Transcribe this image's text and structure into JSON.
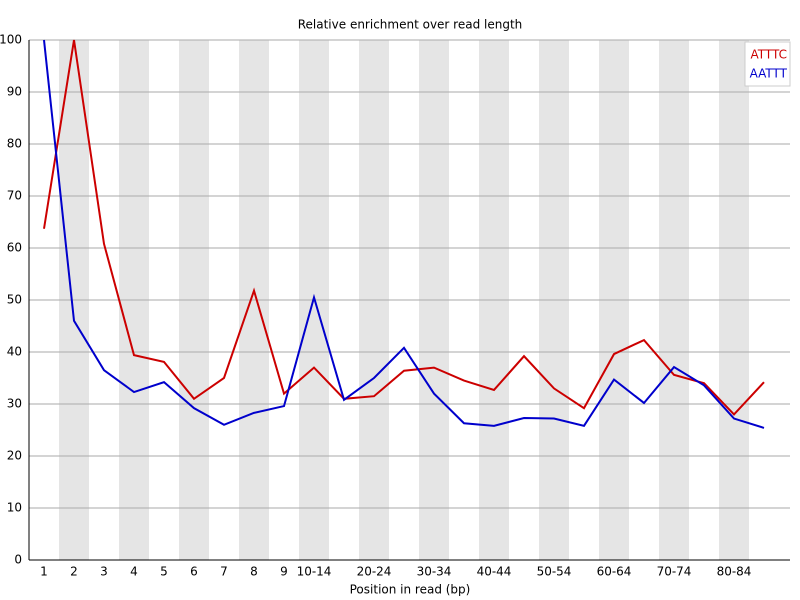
{
  "chart_data": {
    "type": "line",
    "title": "Relative enrichment over read length",
    "xlabel": "Position in read (bp)",
    "categories": [
      "1",
      "2",
      "3",
      "4",
      "5",
      "6",
      "7",
      "8",
      "9",
      "10-14",
      null,
      "20-24",
      null,
      "30-34",
      null,
      "40-44",
      null,
      "50-54",
      null,
      "60-64",
      null,
      "70-74",
      null,
      "80-84",
      null
    ],
    "series": [
      {
        "name": "ATTTC",
        "color": "#cc0000",
        "values": [
          63.7,
          100,
          60.8,
          39.4,
          38.1,
          31,
          35,
          51.8,
          32,
          37,
          31,
          31.5,
          36.4,
          37,
          34.5,
          32.7,
          39.2,
          33,
          29.2,
          39.6,
          42.3,
          35.6,
          34,
          28,
          34.2
        ]
      },
      {
        "name": "AATTT",
        "color": "#0000cc",
        "values": [
          100,
          46,
          36.5,
          32.3,
          34.2,
          29.2,
          26,
          28.3,
          29.6,
          50.5,
          30.8,
          35,
          40.8,
          32,
          26.3,
          25.8,
          27.3,
          27.2,
          25.8,
          34.7,
          30.2,
          37.1,
          33.6,
          27.2,
          25.4
        ]
      }
    ],
    "ylim": [
      0,
      100
    ],
    "yticks": [
      0,
      10,
      20,
      30,
      40,
      50,
      60,
      70,
      80,
      90,
      100
    ],
    "grid": true,
    "legend": "top-right"
  }
}
